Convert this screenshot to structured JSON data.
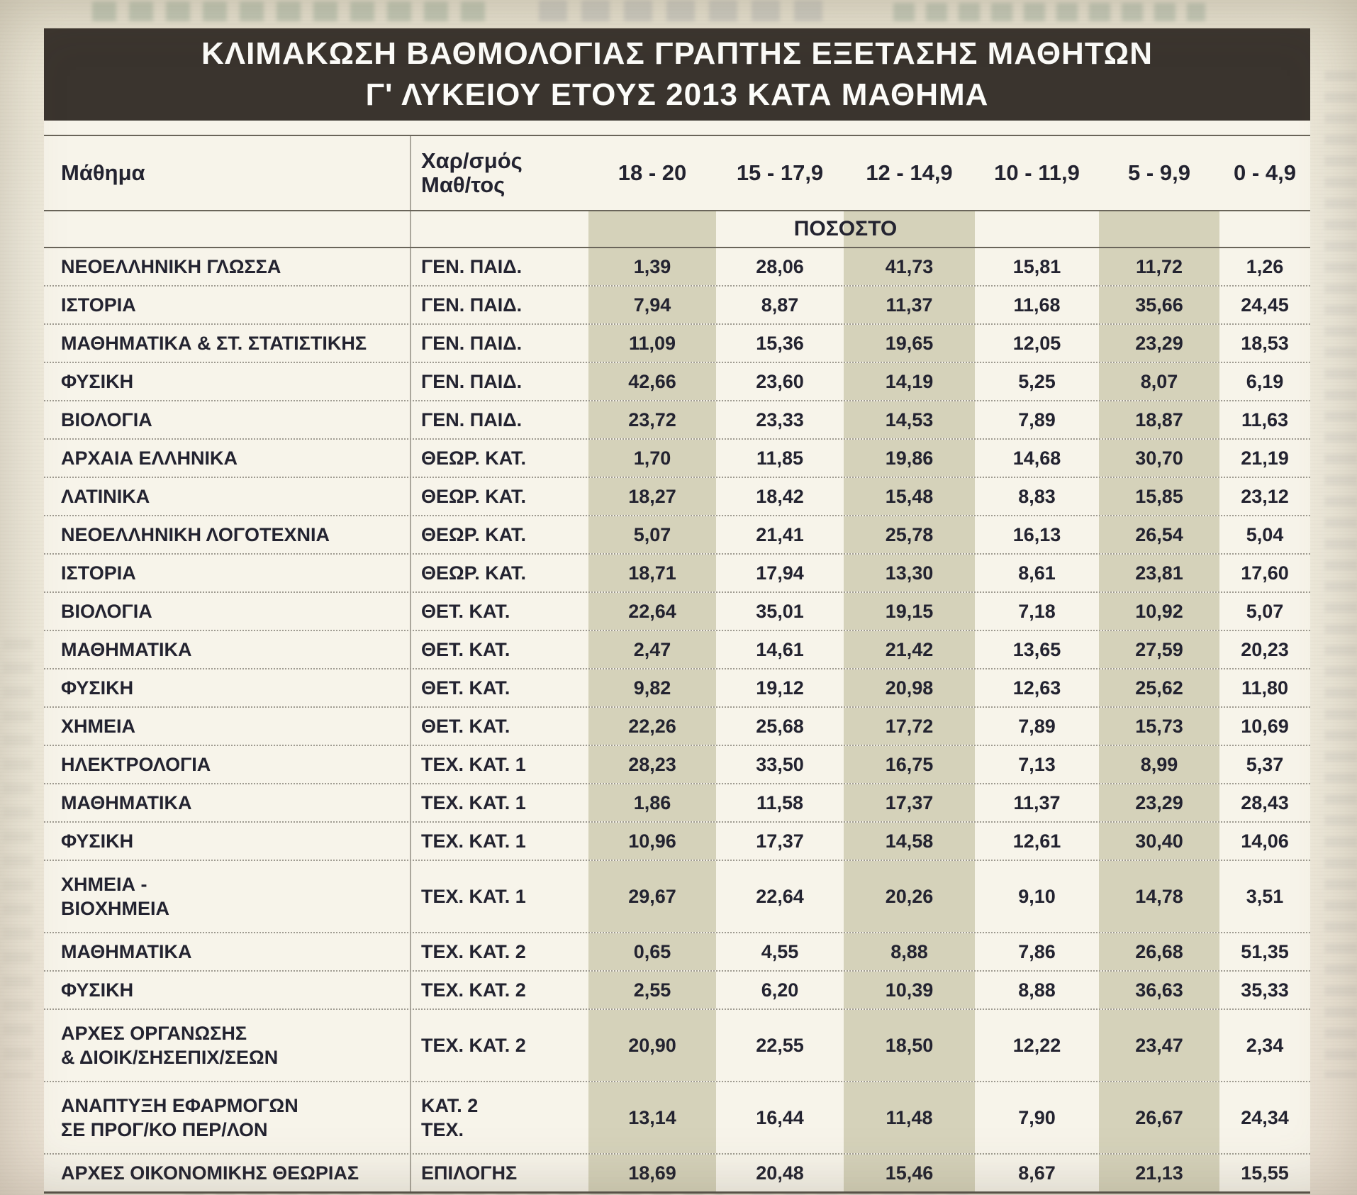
{
  "title": {
    "line1": "ΚΛΙΜΑΚΩΣΗ ΒΑΘΜΟΛΟΓΙΑΣ ΓΡΑΠΤΗΣ ΕΞΕΤΑΣΗΣ ΜΑΘΗΤΩΝ",
    "line2": "Γ' ΛΥΚΕΙΟΥ ΕΤΟΥΣ 2013 ΚΑΤΑ ΜΑΘΗΜΑ"
  },
  "header": {
    "subject": "Μάθημα",
    "type_line1": "Χαρ/σμός",
    "type_line2": "Μαθ/τος",
    "ranges": [
      "18 - 20",
      "15 - 17,9",
      "12 - 14,9",
      "10 - 11,9",
      "5 - 9,9",
      "0 - 4,9"
    ],
    "subheader": "ΠΟΣΟΣΤΟ"
  },
  "colors": {
    "title_bg": "#3a342e",
    "title_text": "#fcfcf9",
    "paper": "#ece7d8",
    "table_bg": "#f7f4ea",
    "column_shade": "#d5d2ba",
    "ink": "#232330"
  },
  "rows": [
    {
      "subject": [
        "ΝΕΟΕΛΛΗΝΙΚΗ ΓΛΩΣΣΑ"
      ],
      "type": [
        "ΓΕΝ. ΠΑΙΔ."
      ],
      "values": [
        "1,39",
        "28,06",
        "41,73",
        "15,81",
        "11,72",
        "1,26"
      ]
    },
    {
      "subject": [
        "ΙΣΤΟΡΙΑ"
      ],
      "type": [
        "ΓΕΝ. ΠΑΙΔ."
      ],
      "values": [
        "7,94",
        "8,87",
        "11,37",
        "11,68",
        "35,66",
        "24,45"
      ]
    },
    {
      "subject": [
        "ΜΑΘΗΜΑΤΙΚΑ & ΣΤ. ΣΤΑΤΙΣΤΙΚΗΣ"
      ],
      "type": [
        "ΓΕΝ. ΠΑΙΔ."
      ],
      "values": [
        "11,09",
        "15,36",
        "19,65",
        "12,05",
        "23,29",
        "18,53"
      ]
    },
    {
      "subject": [
        "ΦΥΣΙΚΗ"
      ],
      "type": [
        "ΓΕΝ. ΠΑΙΔ."
      ],
      "values": [
        "42,66",
        "23,60",
        "14,19",
        "5,25",
        "8,07",
        "6,19"
      ]
    },
    {
      "subject": [
        "ΒΙΟΛΟΓΙΑ"
      ],
      "type": [
        "ΓΕΝ. ΠΑΙΔ."
      ],
      "values": [
        "23,72",
        "23,33",
        "14,53",
        "7,89",
        "18,87",
        "11,63"
      ]
    },
    {
      "subject": [
        "ΑΡΧΑΙΑ ΕΛΛΗΝΙΚΑ"
      ],
      "type": [
        "ΘΕΩΡ. ΚΑΤ."
      ],
      "values": [
        "1,70",
        "11,85",
        "19,86",
        "14,68",
        "30,70",
        "21,19"
      ]
    },
    {
      "subject": [
        "ΛΑΤΙΝΙΚΑ"
      ],
      "type": [
        "ΘΕΩΡ. ΚΑΤ."
      ],
      "values": [
        "18,27",
        "18,42",
        "15,48",
        "8,83",
        "15,85",
        "23,12"
      ]
    },
    {
      "subject": [
        "ΝΕΟΕΛΛΗΝΙΚΗ ΛΟΓΟΤΕΧΝΙΑ"
      ],
      "type": [
        "ΘΕΩΡ. ΚΑΤ."
      ],
      "values": [
        "5,07",
        "21,41",
        "25,78",
        "16,13",
        "26,54",
        "5,04"
      ]
    },
    {
      "subject": [
        "ΙΣΤΟΡΙΑ"
      ],
      "type": [
        "ΘΕΩΡ. ΚΑΤ."
      ],
      "values": [
        "18,71",
        "17,94",
        "13,30",
        "8,61",
        "23,81",
        "17,60"
      ]
    },
    {
      "subject": [
        "ΒΙΟΛΟΓΙΑ"
      ],
      "type": [
        "ΘΕΤ. ΚΑΤ."
      ],
      "values": [
        "22,64",
        "35,01",
        "19,15",
        "7,18",
        "10,92",
        "5,07"
      ]
    },
    {
      "subject": [
        "ΜΑΘΗΜΑΤΙΚΑ"
      ],
      "type": [
        "ΘΕΤ. ΚΑΤ."
      ],
      "values": [
        "2,47",
        "14,61",
        "21,42",
        "13,65",
        "27,59",
        "20,23"
      ]
    },
    {
      "subject": [
        "ΦΥΣΙΚΗ"
      ],
      "type": [
        "ΘΕΤ. ΚΑΤ."
      ],
      "values": [
        "9,82",
        "19,12",
        "20,98",
        "12,63",
        "25,62",
        "11,80"
      ]
    },
    {
      "subject": [
        "ΧΗΜΕΙΑ"
      ],
      "type": [
        "ΘΕΤ. ΚΑΤ."
      ],
      "values": [
        "22,26",
        "25,68",
        "17,72",
        "7,89",
        "15,73",
        "10,69"
      ]
    },
    {
      "subject": [
        "ΗΛΕΚΤΡΟΛΟΓΙΑ"
      ],
      "type": [
        "ΤΕΧ. ΚΑΤ. 1"
      ],
      "values": [
        "28,23",
        "33,50",
        "16,75",
        "7,13",
        "8,99",
        "5,37"
      ]
    },
    {
      "subject": [
        "ΜΑΘΗΜΑΤΙΚΑ"
      ],
      "type": [
        "ΤΕΧ. ΚΑΤ. 1"
      ],
      "values": [
        "1,86",
        "11,58",
        "17,37",
        "11,37",
        "23,29",
        "28,43"
      ]
    },
    {
      "subject": [
        "ΦΥΣΙΚΗ"
      ],
      "type": [
        "ΤΕΧ. ΚΑΤ. 1"
      ],
      "values": [
        "10,96",
        "17,37",
        "14,58",
        "12,61",
        "30,40",
        "14,06"
      ]
    },
    {
      "subject": [
        "ΧΗΜΕΙΑ -",
        "ΒΙΟΧΗΜΕΙΑ"
      ],
      "type": [
        "ΤΕΧ. ΚΑΤ. 1"
      ],
      "values": [
        "29,67",
        "22,64",
        "20,26",
        "9,10",
        "14,78",
        "3,51"
      ]
    },
    {
      "subject": [
        "ΜΑΘΗΜΑΤΙΚΑ"
      ],
      "type": [
        "ΤΕΧ. ΚΑΤ. 2"
      ],
      "values": [
        "0,65",
        "4,55",
        "8,88",
        "7,86",
        "26,68",
        "51,35"
      ]
    },
    {
      "subject": [
        "ΦΥΣΙΚΗ"
      ],
      "type": [
        "ΤΕΧ. ΚΑΤ. 2"
      ],
      "values": [
        "2,55",
        "6,20",
        "10,39",
        "8,88",
        "36,63",
        "35,33"
      ]
    },
    {
      "subject": [
        "ΑΡΧΕΣ ΟΡΓΑΝΩΣΗΣ",
        "& ΔΙΟΙΚ/ΣΗΣΕΠΙΧ/ΣΕΩΝ"
      ],
      "type": [
        "ΤΕΧ. ΚΑΤ. 2"
      ],
      "values": [
        "20,90",
        "22,55",
        "18,50",
        "12,22",
        "23,47",
        "2,34"
      ]
    },
    {
      "subject": [
        "ΑΝΑΠΤΥΞΗ ΕΦΑΡΜΟΓΩΝ",
        "ΣΕ ΠΡΟΓ/ΚΟ ΠΕΡ/ΛΟΝ"
      ],
      "type": [
        "ΚΑΤ. 2",
        "ΤΕΧ."
      ],
      "values": [
        "13,14",
        "16,44",
        "11,48",
        "7,90",
        "26,67",
        "24,34"
      ]
    },
    {
      "subject": [
        "ΑΡΧΕΣ ΟΙΚΟΝΟΜΙΚΗΣ ΘΕΩΡΙΑΣ"
      ],
      "type": [
        "ΕΠΙΛΟΓΗΣ"
      ],
      "values": [
        "18,69",
        "20,48",
        "15,46",
        "8,67",
        "21,13",
        "15,55"
      ]
    }
  ]
}
